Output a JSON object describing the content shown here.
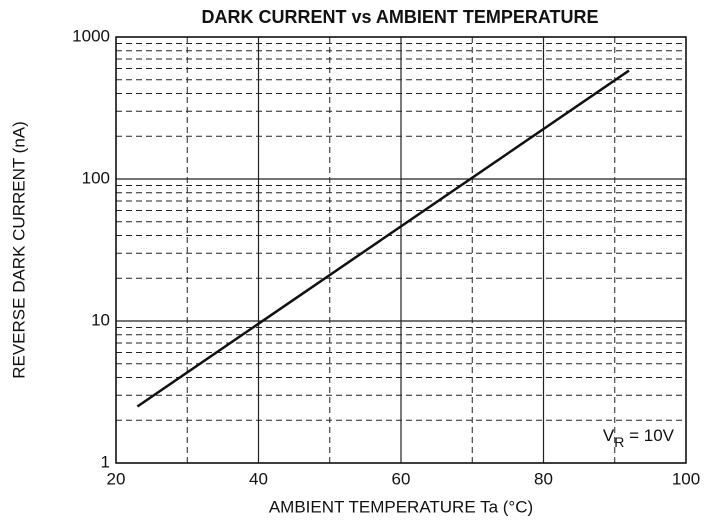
{
  "chart_data": {
    "type": "line",
    "title": "DARK CURRENT vs AMBIENT TEMPERATURE",
    "xlabel": "AMBIENT TEMPERATURE Ta (°C)",
    "ylabel": "REVERSE DARK CURRENT (nA)",
    "x": [
      23,
      92
    ],
    "series": [
      {
        "name": "VR = 10V",
        "color": "#111111",
        "values": [
          2.5,
          580
        ]
      }
    ],
    "xlim": [
      20,
      100
    ],
    "xticks": [
      20,
      40,
      60,
      80,
      100
    ],
    "ylim": [
      1,
      1000
    ],
    "yticks": [
      1,
      10,
      100,
      1000
    ],
    "ylog": true,
    "grid": true,
    "minor_grid": true,
    "annotation": {
      "main": "V",
      "sub": "R",
      "rest": " = 10V"
    }
  }
}
